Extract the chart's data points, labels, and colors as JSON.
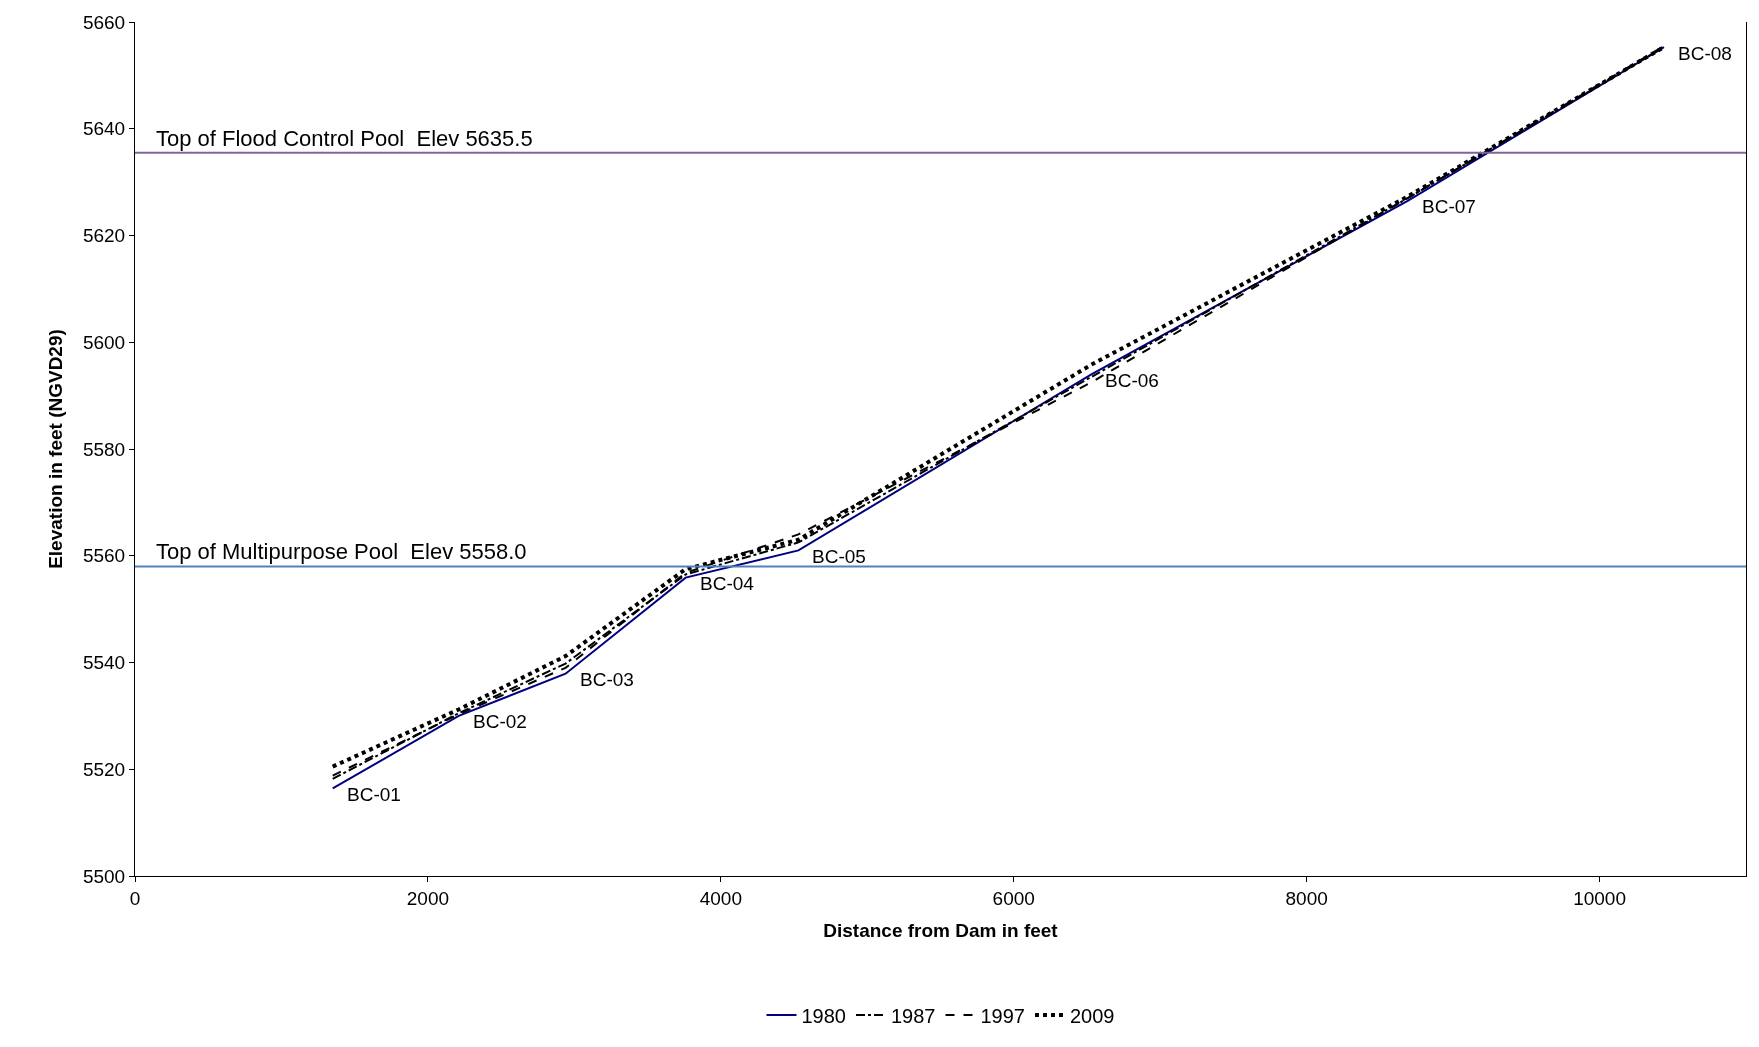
{
  "chart_data": {
    "type": "line",
    "xlabel": "Distance from Dam in feet",
    "ylabel": "Elevation in feet (NGVD29)",
    "x": [
      1350,
      2210,
      2940,
      3760,
      4530,
      6530,
      8690,
      10440
    ],
    "series": [
      {
        "name": "1980",
        "color": "#000080",
        "line_style": "solid",
        "values": [
          5516.4,
          5530,
          5537.9,
          5555.9,
          5561,
          5594,
          5626.5,
          5655.3
        ]
      },
      {
        "name": "1987",
        "color": "#000000",
        "line_style": "dashdot",
        "values": [
          5518.2,
          5530.5,
          5539.8,
          5556.5,
          5562.5,
          5593.5,
          5627,
          5655.3
        ]
      },
      {
        "name": "1997",
        "color": "#000000",
        "line_style": "dashed",
        "values": [
          5518.8,
          5530.3,
          5539,
          5556.8,
          5564,
          5592.5,
          5627,
          5655.5
        ]
      },
      {
        "name": "2009",
        "color": "#000000",
        "line_style": "dotted",
        "values": [
          5520.5,
          5531.2,
          5541.2,
          5557.5,
          5563,
          5595.8,
          5627.3,
          5655.3
        ]
      }
    ],
    "annotations": [
      {
        "text": "BC-01",
        "x": 1350,
        "y": 5516.4
      },
      {
        "text": "BC-02",
        "x": 2210,
        "y": 5530
      },
      {
        "text": "BC-03",
        "x": 2940,
        "y": 5537.9
      },
      {
        "text": "BC-04",
        "x": 3760,
        "y": 5555.9
      },
      {
        "text": "BC-05",
        "x": 4530,
        "y": 5561
      },
      {
        "text": "BC-06",
        "x": 6530,
        "y": 5594
      },
      {
        "text": "BC-07",
        "x": 8690,
        "y": 5626.5
      },
      {
        "text": "BC-08",
        "x": 10440,
        "y": 5655.3
      }
    ],
    "ref_lines": [
      {
        "axis": "y",
        "value": 5635.5,
        "label": "Top of Flood Control Pool  Elev 5635.5",
        "color": "#8064a2"
      },
      {
        "axis": "y",
        "value": 5558.0,
        "label": "Top of Multipurpose Pool  Elev 5558.0",
        "color": "#4f81bd"
      }
    ],
    "xlim": [
      0,
      11000
    ],
    "xticks": [
      0,
      2000,
      4000,
      6000,
      8000,
      10000
    ],
    "ylim": [
      5500,
      5660
    ],
    "yticks": [
      5500,
      5520,
      5540,
      5560,
      5580,
      5600,
      5620,
      5640,
      5660
    ],
    "legend": "bottom",
    "marker": "none"
  }
}
